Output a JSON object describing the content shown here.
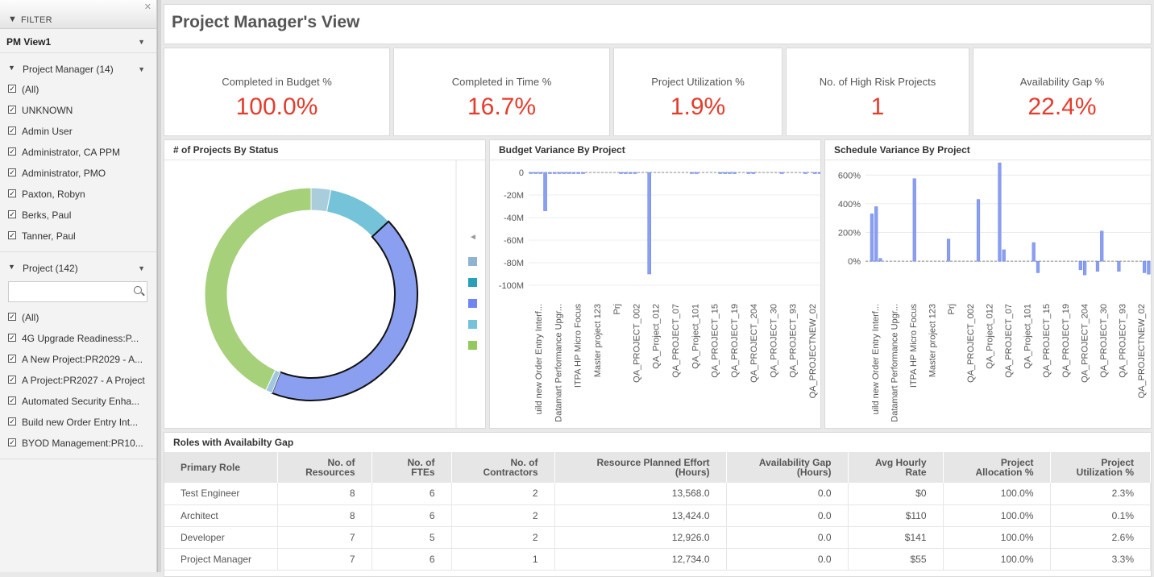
{
  "sidebar": {
    "filter_label": "FILTER",
    "view_name": "PM View1",
    "groups": [
      {
        "name": "Project Manager (14)",
        "items": [
          "(All)",
          "UNKNOWN",
          "Admin User",
          "Administrator, CA PPM",
          "Administrator, PMO",
          "Paxton, Robyn",
          "Berks, Paul",
          "Tanner, Paul"
        ]
      },
      {
        "name": "Project (142)",
        "items": [
          "(All)",
          "4G Upgrade Readiness:P...",
          "A New Project:PR2029 - A...",
          "A Project:PR2027 - A Project",
          "Automated Security Enha...",
          "Build new Order Entry Int...",
          "BYOD Management:PR10..."
        ]
      }
    ]
  },
  "page_title": "Project Manager's View",
  "kpis": [
    {
      "label": "Completed in Budget %",
      "value": "100.0%"
    },
    {
      "label": "Completed in Time %",
      "value": "16.7%"
    },
    {
      "label": "Project Utilization %",
      "value": "1.9%"
    },
    {
      "label": "No. of High Risk Projects",
      "value": "1"
    },
    {
      "label": "Availability Gap %",
      "value": "22.4%"
    }
  ],
  "colors": {
    "kpi_value": "#e53c2c",
    "bar": "#8b9ff1",
    "donut": [
      "#a9cddb",
      "#74c3d9",
      "#8b9ff1",
      "#9fc7e0",
      "#a6d07a"
    ],
    "legend": [
      "#8fb3d0",
      "#2a9fb8",
      "#6f86f0",
      "#74c3d9",
      "#94c95f"
    ]
  },
  "chart_data": [
    {
      "type": "pie",
      "title": "# of Projects By Status",
      "donut": true,
      "values": [
        3,
        10,
        43,
        1,
        43
      ],
      "legend_placement": "right"
    },
    {
      "type": "bar",
      "title": "Budget Variance By Project",
      "yticks": [
        "0",
        "-20M",
        "-40M",
        "-60M",
        "-80M",
        "-100M"
      ],
      "ylim": [
        -105,
        0
      ],
      "tick_labels": [
        "uild new Order Entry Interf...",
        "Datamart Performance Upgr...",
        "ITPA HP Micro Focus",
        "Master project 123",
        "Prj",
        "QA_PROJECT_002",
        "QA_Project_012",
        "QA_PROJECT_07",
        "QA_Project_101",
        "QA_PROJECT_15",
        "QA_PROJECT_19",
        "QA_PROJECT_204",
        "QA_PROJECT_30",
        "QA_PROJECT_93",
        "QA_PROJECTNEW_02"
      ],
      "values": [
        -1,
        -1,
        -1,
        -34,
        -1,
        -1,
        -1,
        -1,
        -1,
        -1,
        -1,
        -1,
        0,
        0,
        0,
        0,
        0,
        0,
        0,
        -1,
        -1,
        -1,
        -1,
        0,
        0,
        -90,
        0,
        0,
        0,
        0,
        0,
        0,
        0,
        0,
        -1,
        -1,
        0,
        0,
        0,
        0,
        -1,
        -1,
        -1,
        -1,
        0,
        0,
        -1,
        -1,
        0,
        0,
        0,
        0,
        0,
        -1,
        0,
        0,
        0,
        0,
        -1,
        0,
        -1,
        -1
      ],
      "grid": true
    },
    {
      "type": "bar",
      "title": "Schedule Variance By Project",
      "yticks": [
        "600%",
        "400%",
        "200%",
        "0%"
      ],
      "ylim": [
        -100,
        680
      ],
      "tick_labels": [
        "uild new Order Entry Interf...",
        "Datamart Performance Upgr...",
        "ITPA HP Micro Focus",
        "Master project 123",
        "Prj",
        "QA_PROJECT_002",
        "QA_Project_012",
        "QA_PROJECT_07",
        "QA_Project_101",
        "QA_PROJECT_15",
        "QA_PROJECT_19",
        "QA_PROJECT_204",
        "QA_PROJECT_30",
        "QA_PROJECT_93",
        "QA_PROJECTNEW_02"
      ],
      "values": [
        0,
        330,
        380,
        20,
        0,
        0,
        0,
        0,
        0,
        0,
        0,
        575,
        0,
        0,
        0,
        0,
        0,
        0,
        0,
        155,
        0,
        0,
        0,
        0,
        0,
        0,
        430,
        0,
        0,
        0,
        0,
        685,
        80,
        0,
        0,
        0,
        0,
        0,
        0,
        130,
        -80,
        0,
        0,
        0,
        0,
        0,
        0,
        0,
        0,
        0,
        -60,
        -95,
        0,
        0,
        -70,
        210,
        0,
        0,
        0,
        -70,
        0,
        0,
        0,
        0,
        0,
        -80,
        -90
      ],
      "grid": true
    }
  ],
  "roles_table": {
    "title": "Roles with Availabilty Gap",
    "columns": [
      [
        "Primary Role",
        ""
      ],
      [
        "No. of",
        "Resources"
      ],
      [
        "No. of",
        "FTEs"
      ],
      [
        "No. of",
        "Contractors"
      ],
      [
        "Resource Planned Effort",
        "(Hours)"
      ],
      [
        "Availability Gap",
        "(Hours)"
      ],
      [
        "Avg Hourly",
        "Rate"
      ],
      [
        "Project",
        "Allocation %"
      ],
      [
        "Project",
        "Utilization %"
      ]
    ],
    "rows": [
      [
        "Test Engineer",
        "8",
        "6",
        "2",
        "13,568.0",
        "0.0",
        "$0",
        "100.0%",
        "2.3%"
      ],
      [
        "Architect",
        "8",
        "6",
        "2",
        "13,424.0",
        "0.0",
        "$110",
        "100.0%",
        "0.1%"
      ],
      [
        "Developer",
        "7",
        "5",
        "2",
        "12,926.0",
        "0.0",
        "$141",
        "100.0%",
        "2.6%"
      ],
      [
        "Project Manager",
        "7",
        "6",
        "1",
        "12,734.0",
        "0.0",
        "$55",
        "100.0%",
        "3.3%"
      ]
    ]
  }
}
